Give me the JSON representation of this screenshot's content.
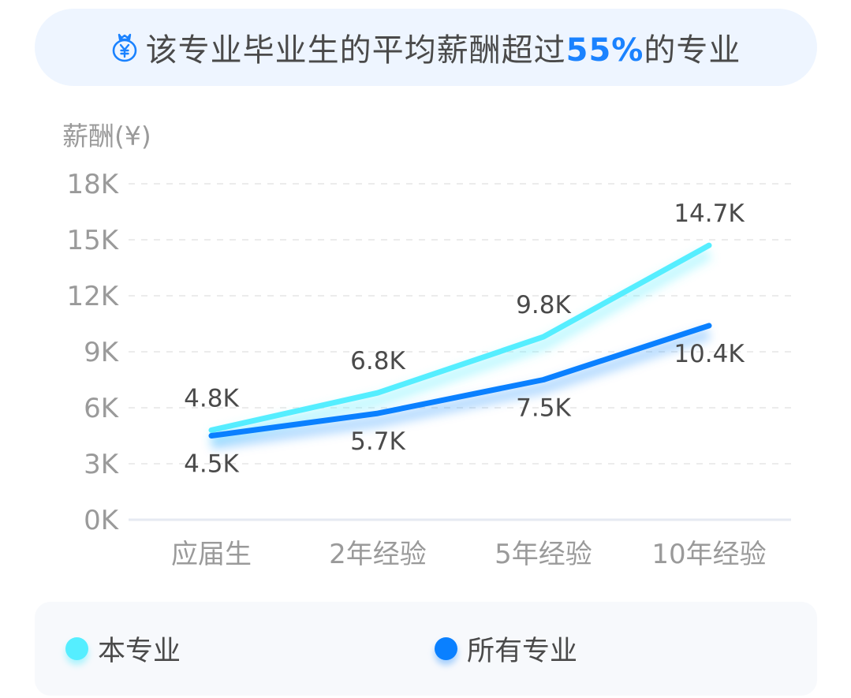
{
  "header": {
    "icon": "money-bag-yen-icon",
    "title_prefix": "该专业毕业生的平均薪酬超过",
    "highlight": "55%",
    "title_suffix": "的专业",
    "highlight_color": "#1a82ff"
  },
  "legend": {
    "items": [
      {
        "label": "本专业",
        "color": "#55eeff"
      },
      {
        "label": "所有专业",
        "color": "#0a80ff"
      }
    ]
  },
  "chart_data": {
    "type": "line",
    "title": "该专业毕业生的平均薪酬超过55%的专业",
    "xlabel": "",
    "ylabel": "薪酬(¥)",
    "categories": [
      "应届生",
      "2年经验",
      "5年经验",
      "10年经验"
    ],
    "y_ticks": [
      "0K",
      "3K",
      "6K",
      "9K",
      "12K",
      "15K",
      "18K"
    ],
    "ylim": [
      0,
      18000
    ],
    "grid": true,
    "legend_position": "bottom",
    "series": [
      {
        "name": "本专业",
        "color": "#55eeff",
        "values": [
          4800,
          6800,
          9800,
          14700
        ],
        "labels": [
          "4.8K",
          "6.8K",
          "9.8K",
          "14.7K"
        ]
      },
      {
        "name": "所有专业",
        "color": "#0a80ff",
        "values": [
          4500,
          5700,
          7500,
          10400
        ],
        "labels": [
          "4.5K",
          "5.7K",
          "7.5K",
          "10.4K"
        ]
      }
    ]
  }
}
